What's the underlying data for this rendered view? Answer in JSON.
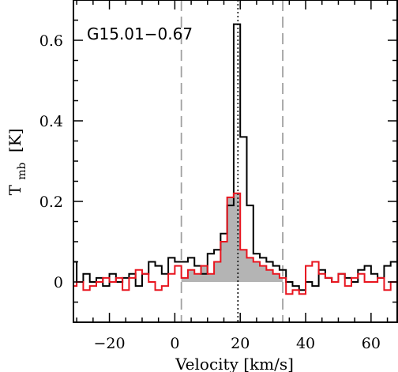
{
  "chart_data": {
    "type": "line",
    "annotation": "G15.01−0.67",
    "xlabel": "Velocity [km/s]",
    "ylabel_main": "T",
    "ylabel_sub": "mb",
    "ylabel_unit": "[K]",
    "xlim": [
      -31,
      68
    ],
    "ylim": [
      -0.1,
      0.7
    ],
    "xticks": [
      -20,
      0,
      20,
      40,
      60
    ],
    "xtick_labels": [
      "−20",
      "0",
      "20",
      "40",
      "60"
    ],
    "yticks": [
      0,
      0.2,
      0.4,
      0.6
    ],
    "ytick_labels": [
      "0",
      "0.2",
      "0.4",
      "0.6"
    ],
    "grid": false,
    "vertical_lines": [
      {
        "x": 2,
        "style": "dashed",
        "color": "#a0a0a0"
      },
      {
        "x": 33,
        "style": "dashed",
        "color": "#a0a0a0"
      },
      {
        "x": 19.3,
        "style": "dotted",
        "color": "#000000"
      }
    ],
    "shaded_region": {
      "series": 1,
      "from": 2,
      "to": 33,
      "color": "#b4b4b4"
    },
    "series": [
      {
        "color": "#000000",
        "style": "step",
        "x": [
          -31,
          -29,
          -27,
          -25,
          -23,
          -21,
          -19,
          -17,
          -15,
          -13,
          -11,
          -9,
          -7,
          -5,
          -3,
          -1,
          1,
          3,
          5,
          7,
          9,
          11,
          13,
          15,
          17,
          19,
          21,
          23,
          25,
          27,
          29,
          31,
          33,
          35,
          37,
          39,
          41,
          43,
          45,
          47,
          49,
          51,
          53,
          55,
          57,
          59,
          61,
          63,
          65,
          67
        ],
        "values": [
          0.05,
          0.0,
          0.02,
          0.0,
          0.01,
          -0.01,
          0.02,
          0.0,
          0.01,
          0.02,
          -0.01,
          0.02,
          0.05,
          0.04,
          0.02,
          0.06,
          0.05,
          0.05,
          0.06,
          0.04,
          0.02,
          0.07,
          0.08,
          0.12,
          0.19,
          0.64,
          0.36,
          0.19,
          0.07,
          0.06,
          0.05,
          0.04,
          0.03,
          0.0,
          -0.01,
          -0.02,
          0.0,
          -0.01,
          0.03,
          0.01,
          0.0,
          0.02,
          0.01,
          0.0,
          0.03,
          0.04,
          0.02,
          0.01,
          0.04,
          0.05
        ]
      },
      {
        "color": "#e8141e",
        "style": "step",
        "x": [
          -31,
          -29,
          -27,
          -25,
          -23,
          -21,
          -19,
          -17,
          -15,
          -13,
          -11,
          -9,
          -7,
          -5,
          -3,
          -1,
          1,
          3,
          5,
          7,
          9,
          11,
          13,
          15,
          17,
          19,
          21,
          23,
          25,
          27,
          29,
          31,
          33,
          35,
          37,
          39,
          41,
          43,
          45,
          47,
          49,
          51,
          53,
          55,
          57,
          59,
          61,
          63,
          65,
          67
        ],
        "values": [
          -0.01,
          0.0,
          -0.02,
          -0.01,
          0.0,
          0.01,
          0.0,
          0.01,
          -0.02,
          0.01,
          0.03,
          0.02,
          0.0,
          -0.02,
          -0.01,
          0.02,
          0.04,
          0.01,
          0.03,
          0.02,
          0.04,
          0.02,
          0.05,
          0.1,
          0.21,
          0.22,
          0.08,
          0.06,
          0.05,
          0.04,
          0.03,
          0.02,
          0.01,
          -0.03,
          -0.02,
          -0.03,
          0.04,
          0.05,
          0.02,
          0.01,
          0.0,
          0.02,
          -0.01,
          0.01,
          0.02,
          0.0,
          0.0,
          0.01,
          -0.02,
          0.0
        ]
      }
    ]
  }
}
